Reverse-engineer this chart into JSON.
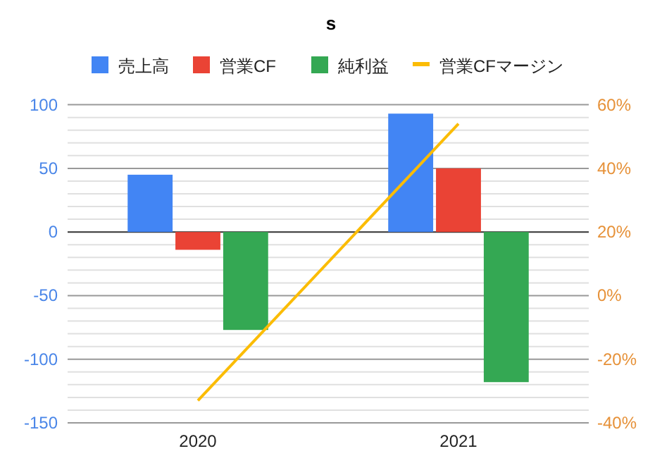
{
  "chart_data": {
    "type": "bar",
    "title": "s",
    "categories": [
      "2020",
      "2021"
    ],
    "series": [
      {
        "name": "売上高",
        "color": "#4285f4",
        "values": [
          45,
          93
        ]
      },
      {
        "name": "営業CF",
        "color": "#ea4335",
        "values": [
          -14,
          50
        ]
      },
      {
        "name": "純利益",
        "color": "#34a853",
        "values": [
          -77,
          -118
        ]
      },
      {
        "name": "営業CFマージン",
        "color": "#fbbc04",
        "type": "line",
        "axis": "y2",
        "values": [
          -33,
          54
        ]
      }
    ],
    "ylim": [
      -150,
      100
    ],
    "yticks": [
      -150,
      -100,
      -50,
      0,
      50,
      100
    ],
    "y2lim": [
      -40,
      60
    ],
    "y2ticks": [
      {
        "value": -40,
        "label": "-40%"
      },
      {
        "value": -20,
        "label": "-20%"
      },
      {
        "value": 0,
        "label": "0%"
      },
      {
        "value": 20,
        "label": "20%"
      },
      {
        "value": 40,
        "label": "40%"
      },
      {
        "value": 60,
        "label": "60%"
      }
    ],
    "grid": "y",
    "legend": "top"
  }
}
